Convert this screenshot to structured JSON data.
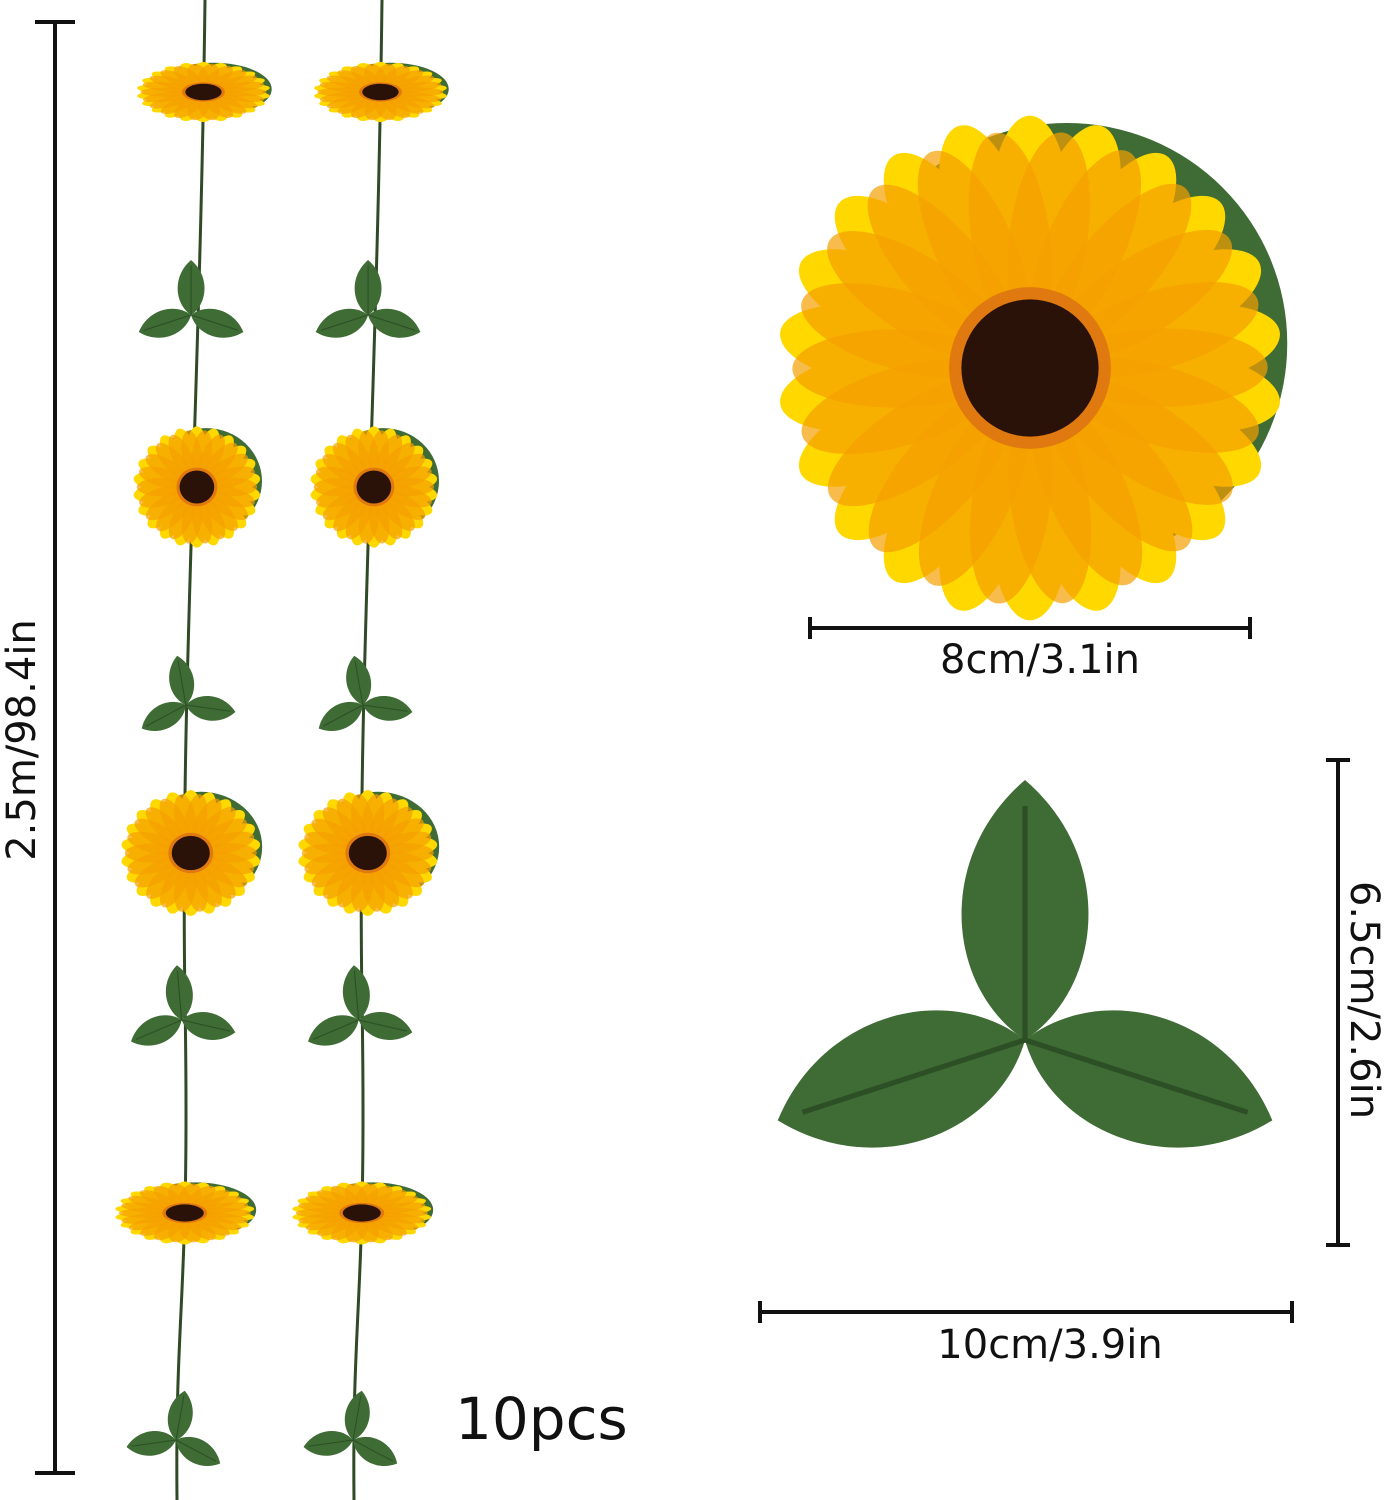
{
  "dimensions": {
    "garland_length": "2.5m/98.4in",
    "flower_diameter": "8cm/3.1in",
    "leaf_height": "6.5cm/2.6in",
    "leaf_width": "10cm/3.9in"
  },
  "quantity": "10pcs",
  "colors": {
    "petal": "#ffd800",
    "petal_inner": "#f5a000",
    "center": "#2a1208",
    "leaf": "#3f6b35",
    "stem": "#2f4a25",
    "line": "#111111"
  }
}
